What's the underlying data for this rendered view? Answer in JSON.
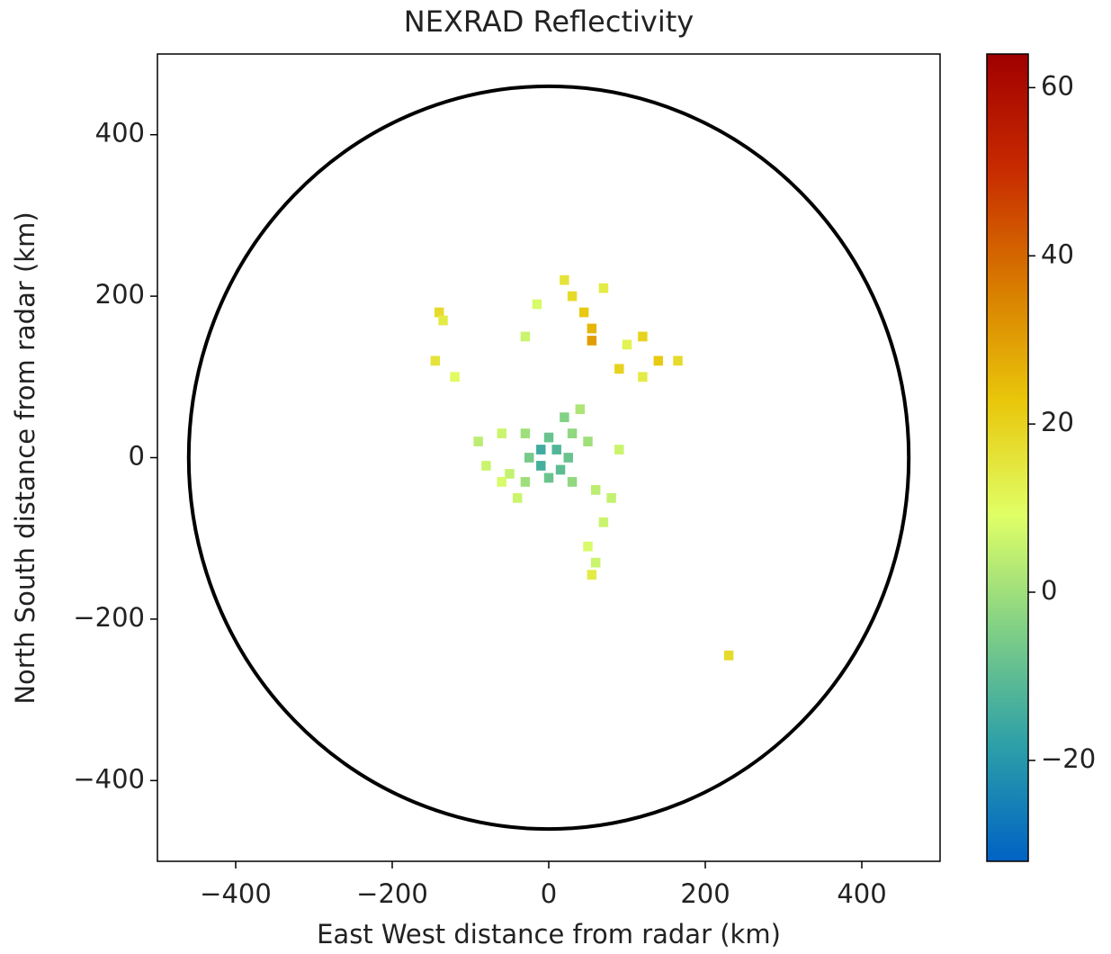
{
  "chart_data": {
    "type": "radar",
    "title": "NEXRAD Reflectivity",
    "x_label": "East West distance from radar (km)",
    "y_label": "North South distance from radar (km)",
    "xlim": [
      -500,
      500
    ],
    "ylim": [
      -500,
      500
    ],
    "xticks": [
      {
        "value": -400,
        "label": "−400"
      },
      {
        "value": -200,
        "label": "−200"
      },
      0,
      200,
      400
    ],
    "yticks": [
      {
        "value": -400,
        "label": "−400"
      },
      {
        "value": -200,
        "label": "−200"
      },
      0,
      200,
      400
    ],
    "range_ring": 460,
    "clim": [
      -32,
      64
    ],
    "cticks": [
      {
        "value": -20,
        "label": "−20"
      },
      0,
      20,
      40,
      60
    ],
    "colormap": [
      "#0062c4",
      "#2c9fa8",
      "#7fcf86",
      "#e0ff66",
      "#e9c60a",
      "#d87a00",
      "#c82a00",
      "#a00000"
    ],
    "x": [
      -10,
      10,
      -10,
      15,
      0,
      25,
      -25,
      0,
      30,
      -30,
      30,
      -30,
      40,
      20,
      50,
      -50,
      -60,
      -80,
      -40,
      60,
      80,
      90,
      70,
      50,
      55,
      60,
      -90,
      -60,
      30,
      45,
      55,
      55,
      20,
      70,
      -15,
      -140,
      -135,
      -145,
      -120,
      120,
      140,
      165,
      120,
      100,
      -30,
      90,
      230
    ],
    "y": [
      10,
      10,
      -10,
      -15,
      25,
      0,
      0,
      -25,
      30,
      30,
      -30,
      -30,
      60,
      50,
      20,
      -20,
      -30,
      -10,
      -50,
      -40,
      -50,
      10,
      -80,
      -110,
      -145,
      -130,
      20,
      30,
      200,
      180,
      160,
      145,
      220,
      210,
      190,
      180,
      170,
      120,
      100,
      150,
      120,
      120,
      100,
      140,
      150,
      110,
      -245
    ],
    "values": [
      -15,
      -12,
      -14,
      -10,
      -8,
      -8,
      -6,
      -8,
      -2,
      0,
      -2,
      0,
      2,
      -4,
      0,
      5,
      8,
      6,
      6,
      4,
      5,
      6,
      6,
      8,
      14,
      6,
      4,
      6,
      18,
      22,
      26,
      30,
      16,
      14,
      8,
      18,
      14,
      16,
      10,
      20,
      22,
      18,
      14,
      12,
      6,
      20,
      18
    ]
  }
}
